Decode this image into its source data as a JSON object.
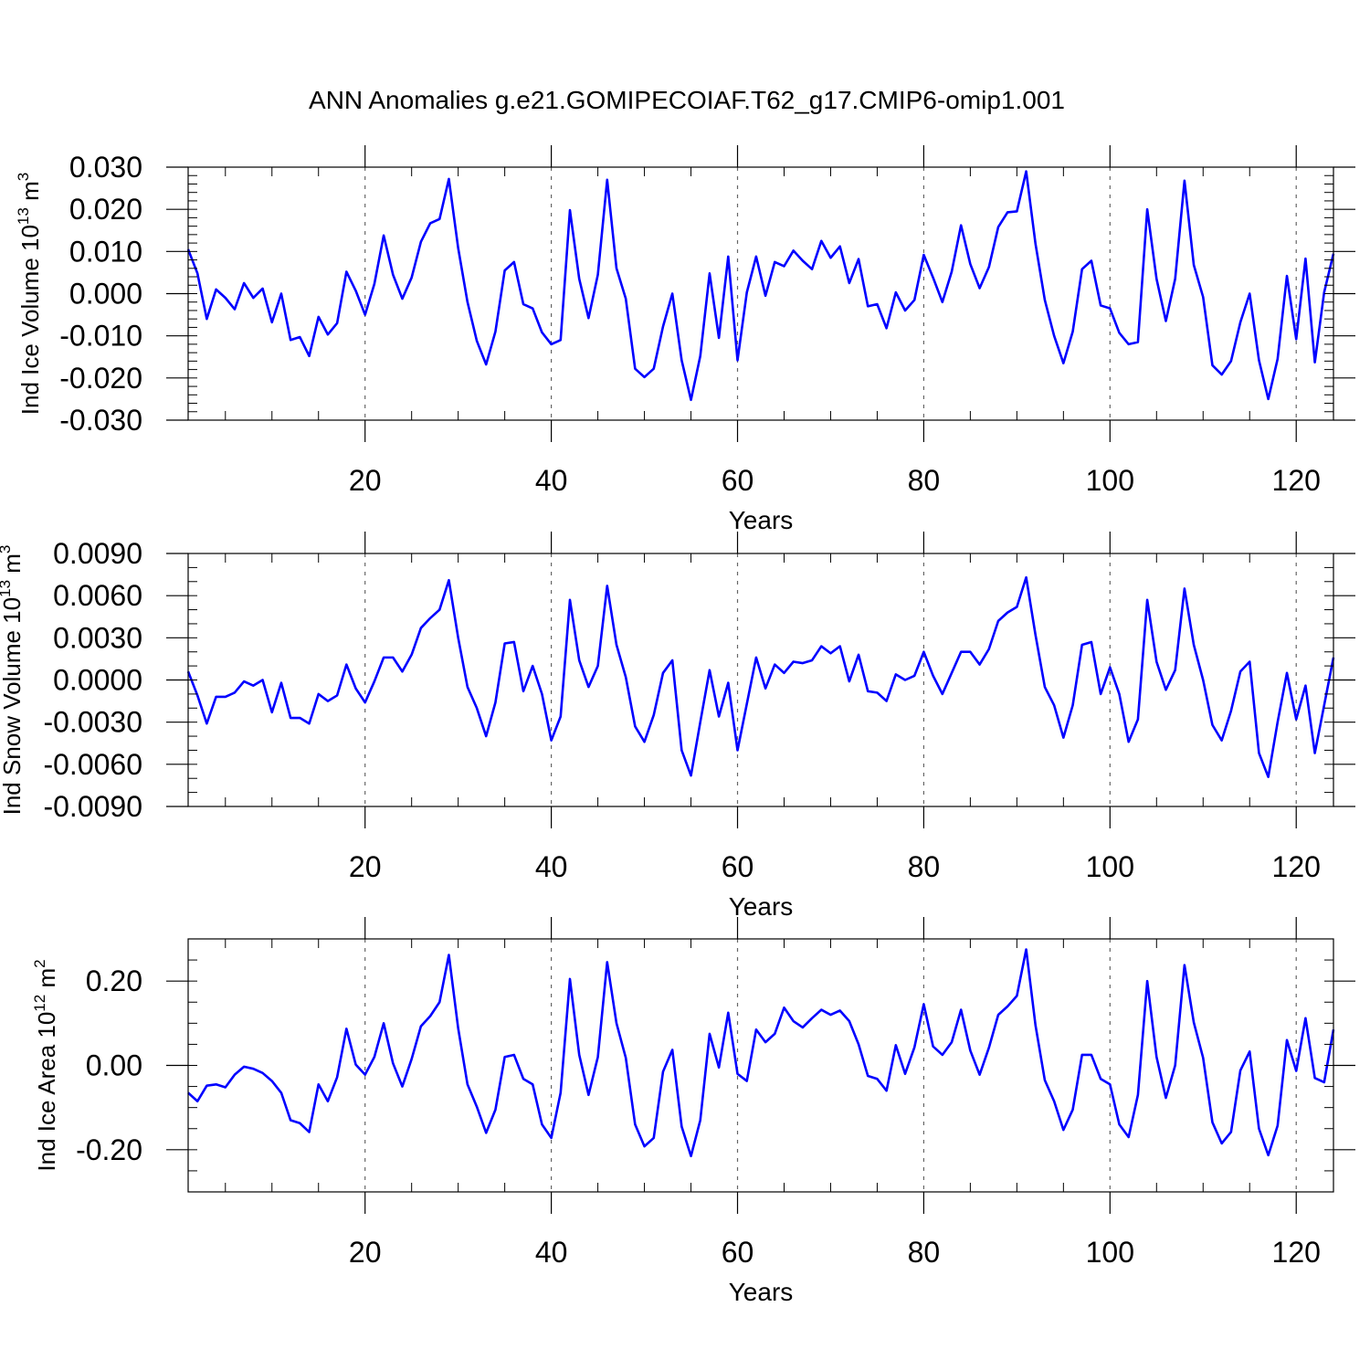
{
  "figure": {
    "title": "ANN Anomalies g.e21.GOMIPECOIAF.T62_g17.CMIP6-omip1.001"
  },
  "colors": {
    "series": "#0000ff",
    "axis": "#000000",
    "grid": "#666666"
  },
  "chart_data": [
    {
      "type": "line",
      "name": "ice-volume",
      "title": "",
      "xlabel": "Years",
      "ylabel_main": "Ind Ice Volume 10",
      "ylabel_exp": "13",
      "ylabel_unit": " m",
      "ylabel_unit_exp": "3",
      "xlim": [
        1,
        124
      ],
      "ylim": [
        -0.03,
        0.03
      ],
      "x_ticks": [
        20,
        40,
        60,
        80,
        100,
        120
      ],
      "x_tick_labels": [
        "20",
        "40",
        "60",
        "80",
        "100",
        "120"
      ],
      "y_ticks": [
        -0.03,
        -0.02,
        -0.01,
        0.0,
        0.01,
        0.02,
        0.03
      ],
      "y_tick_labels": [
        "-0.030",
        "-0.020",
        "-0.010",
        "0.000",
        "0.010",
        "0.020",
        "0.030"
      ],
      "y_minor_step": 0.002,
      "grid_x": true,
      "series": [
        {
          "name": "Ind Ice Volume",
          "values": [
            0.0105,
            0.0048,
            -0.006,
            0.001,
            -0.001,
            -0.0037,
            0.0025,
            -0.001,
            0.0012,
            -0.0068,
            0.0,
            -0.011,
            -0.0103,
            -0.0148,
            -0.0055,
            -0.0097,
            -0.007,
            0.0052,
            0.0007,
            -0.005,
            0.0023,
            0.0138,
            0.0045,
            -0.0012,
            0.0038,
            0.0123,
            0.0167,
            0.0177,
            0.0272,
            0.0108,
            -0.002,
            -0.0112,
            -0.0168,
            -0.009,
            0.0055,
            0.0075,
            -0.0025,
            -0.0035,
            -0.0092,
            -0.012,
            -0.011,
            0.0198,
            0.0035,
            -0.0058,
            0.0045,
            0.027,
            0.006,
            -0.0012,
            -0.0178,
            -0.0198,
            -0.0178,
            -0.0078,
            0.0,
            -0.0158,
            -0.0252,
            -0.0148,
            0.0048,
            -0.0105,
            0.0088,
            -0.0158,
            0.0003,
            0.0088,
            -0.0005,
            0.0075,
            0.0065,
            0.0102,
            0.0078,
            0.0058,
            0.0125,
            0.0085,
            0.0112,
            0.0025,
            0.0082,
            -0.003,
            -0.0025,
            -0.0082,
            0.0003,
            -0.004,
            -0.0015,
            0.0092,
            0.0038,
            -0.002,
            0.0052,
            0.0162,
            0.007,
            0.0013,
            0.0063,
            0.0158,
            0.0193,
            0.0195,
            0.029,
            0.0118,
            -0.0015,
            -0.01,
            -0.0165,
            -0.009,
            0.0058,
            0.0078,
            -0.0028,
            -0.0035,
            -0.0093,
            -0.012,
            -0.0115,
            0.02,
            0.0035,
            -0.0065,
            0.0035,
            0.0268,
            0.0068,
            -0.0008,
            -0.017,
            -0.0192,
            -0.016,
            -0.0068,
            0.0,
            -0.0158,
            -0.025,
            -0.0155,
            0.0042,
            -0.0108,
            0.0083,
            -0.0163,
            0.0003,
            0.0095
          ]
        }
      ]
    },
    {
      "type": "line",
      "name": "snow-volume",
      "title": "",
      "xlabel": "Years",
      "ylabel_main": "Ind Snow Volume 10",
      "ylabel_exp": "13",
      "ylabel_unit": " m",
      "ylabel_unit_exp": "3",
      "xlim": [
        1,
        124
      ],
      "ylim": [
        -0.009,
        0.009
      ],
      "x_ticks": [
        20,
        40,
        60,
        80,
        100,
        120
      ],
      "x_tick_labels": [
        "20",
        "40",
        "60",
        "80",
        "100",
        "120"
      ],
      "y_ticks": [
        -0.009,
        -0.006,
        -0.003,
        0.0,
        0.003,
        0.006,
        0.009
      ],
      "y_tick_labels": [
        "-0.0090",
        "-0.0060",
        "-0.0030",
        "0.0000",
        "0.0030",
        "0.0060",
        "0.0090"
      ],
      "y_minor_step": 0.001,
      "grid_x": true,
      "series": [
        {
          "name": "Ind Snow Volume",
          "values": [
            0.0006,
            -0.0011,
            -0.0031,
            -0.0012,
            -0.0012,
            -0.0009,
            -0.0001,
            -0.0004,
            0.0,
            -0.0023,
            -0.0002,
            -0.0027,
            -0.0027,
            -0.0031,
            -0.001,
            -0.0015,
            -0.0011,
            0.0011,
            -0.0006,
            -0.0016,
            -0.0001,
            0.0016,
            0.0016,
            0.0006,
            0.0018,
            0.0037,
            0.0044,
            0.005,
            0.0071,
            0.003,
            -0.0005,
            -0.002,
            -0.004,
            -0.0016,
            0.0026,
            0.0027,
            -0.0008,
            0.001,
            -0.001,
            -0.0043,
            -0.0026,
            0.0057,
            0.0014,
            -0.0005,
            0.001,
            0.0067,
            0.0025,
            0.0002,
            -0.0033,
            -0.0044,
            -0.0025,
            0.0005,
            0.0014,
            -0.005,
            -0.0068,
            -0.003,
            0.0007,
            -0.0026,
            -0.0002,
            -0.005,
            -0.0017,
            0.0016,
            -0.0006,
            0.0011,
            0.0005,
            0.0013,
            0.0012,
            0.0014,
            0.0024,
            0.0019,
            0.0024,
            -0.0001,
            0.0018,
            -0.0008,
            -0.0009,
            -0.0015,
            0.0004,
            0.0,
            0.0003,
            0.002,
            0.0003,
            -0.001,
            0.0005,
            0.002,
            0.002,
            0.0011,
            0.0022,
            0.0042,
            0.0048,
            0.0052,
            0.0073,
            0.0032,
            -0.0005,
            -0.0018,
            -0.0041,
            -0.0018,
            0.0025,
            0.0027,
            -0.001,
            0.0009,
            -0.001,
            -0.0044,
            -0.0028,
            0.0057,
            0.0013,
            -0.0007,
            0.0007,
            0.0065,
            0.0025,
            0.0,
            -0.0032,
            -0.0043,
            -0.0022,
            0.0006,
            0.0013,
            -0.0052,
            -0.0069,
            -0.003,
            0.0005,
            -0.0028,
            -0.0004,
            -0.0052,
            -0.0018,
            0.0016
          ]
        }
      ]
    },
    {
      "type": "line",
      "name": "ice-area",
      "title": "",
      "xlabel": "Years",
      "ylabel_main": "Ind Ice Area 10",
      "ylabel_exp": "12",
      "ylabel_unit": " m",
      "ylabel_unit_exp": "2",
      "xlim": [
        1,
        124
      ],
      "ylim": [
        -0.3,
        0.3
      ],
      "x_ticks": [
        20,
        40,
        60,
        80,
        100,
        120
      ],
      "x_tick_labels": [
        "20",
        "40",
        "60",
        "80",
        "100",
        "120"
      ],
      "y_ticks": [
        -0.2,
        0.0,
        0.2
      ],
      "y_tick_labels": [
        "-0.20",
        "0.00",
        "0.20"
      ],
      "y_minor_step": 0.05,
      "grid_x": true,
      "series": [
        {
          "name": "Ind Ice Area",
          "values": [
            -0.065,
            -0.085,
            -0.048,
            -0.045,
            -0.052,
            -0.022,
            -0.003,
            -0.008,
            -0.018,
            -0.037,
            -0.065,
            -0.13,
            -0.137,
            -0.158,
            -0.045,
            -0.085,
            -0.028,
            0.087,
            0.002,
            -0.022,
            0.02,
            0.1,
            0.005,
            -0.05,
            0.015,
            0.093,
            0.117,
            0.15,
            0.262,
            0.088,
            -0.045,
            -0.098,
            -0.16,
            -0.105,
            0.02,
            0.025,
            -0.032,
            -0.045,
            -0.14,
            -0.172,
            -0.065,
            0.205,
            0.025,
            -0.07,
            0.02,
            0.245,
            0.1,
            0.018,
            -0.14,
            -0.192,
            -0.172,
            -0.015,
            0.037,
            -0.145,
            -0.215,
            -0.13,
            0.075,
            -0.005,
            0.125,
            -0.02,
            -0.037,
            0.085,
            0.055,
            0.075,
            0.137,
            0.105,
            0.09,
            0.112,
            0.132,
            0.12,
            0.13,
            0.105,
            0.05,
            -0.025,
            -0.032,
            -0.06,
            0.048,
            -0.02,
            0.043,
            0.145,
            0.045,
            0.025,
            0.055,
            0.132,
            0.035,
            -0.022,
            0.042,
            0.12,
            0.14,
            0.165,
            0.275,
            0.095,
            -0.035,
            -0.085,
            -0.153,
            -0.105,
            0.025,
            0.025,
            -0.032,
            -0.045,
            -0.14,
            -0.17,
            -0.07,
            0.2,
            0.02,
            -0.077,
            0.0,
            0.238,
            0.102,
            0.018,
            -0.135,
            -0.185,
            -0.158,
            -0.012,
            0.033,
            -0.15,
            -0.213,
            -0.143,
            0.06,
            -0.013,
            0.112,
            -0.03,
            -0.04,
            0.085
          ]
        }
      ]
    }
  ]
}
